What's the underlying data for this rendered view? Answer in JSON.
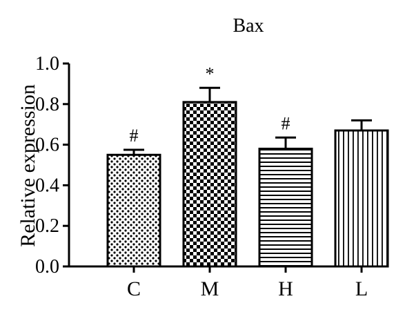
{
  "chart_data": {
    "type": "bar",
    "title": "Bax",
    "xlabel": "",
    "ylabel": "Relative expression",
    "categories": [
      "C",
      "M",
      "H",
      "L"
    ],
    "values": [
      0.55,
      0.81,
      0.58,
      0.67
    ],
    "errors": [
      0.025,
      0.07,
      0.055,
      0.05
    ],
    "significance": [
      "#",
      "*",
      "#",
      ""
    ],
    "patterns": [
      "dots",
      "checker",
      "horizontal-lines",
      "vertical-lines"
    ],
    "ylim": [
      0,
      1.0
    ],
    "yticks": [
      "0.0",
      "0.2",
      "0.4",
      "0.6",
      "0.8",
      "1.0"
    ],
    "grid": false,
    "legend": "none"
  }
}
